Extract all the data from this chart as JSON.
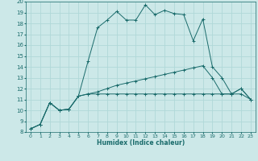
{
  "xlabel": "Humidex (Indice chaleur)",
  "background_color": "#cce8e8",
  "grid_color": "#b0d8d8",
  "line_color": "#1a6b6b",
  "xlim": [
    -0.5,
    23.5
  ],
  "ylim": [
    8,
    20
  ],
  "xticks": [
    0,
    1,
    2,
    3,
    4,
    5,
    6,
    7,
    8,
    9,
    10,
    11,
    12,
    13,
    14,
    15,
    16,
    17,
    18,
    19,
    20,
    21,
    22,
    23
  ],
  "yticks": [
    8,
    9,
    10,
    11,
    12,
    13,
    14,
    15,
    16,
    17,
    18,
    19,
    20
  ],
  "line1_x": [
    0,
    1,
    2,
    3,
    4,
    5,
    6,
    7,
    8,
    9,
    10,
    11,
    12,
    13,
    14,
    15,
    16,
    17,
    18,
    19,
    20,
    21,
    22,
    23
  ],
  "line1_y": [
    8.3,
    8.7,
    10.7,
    10.0,
    10.1,
    11.3,
    14.5,
    17.6,
    18.3,
    19.1,
    18.3,
    18.3,
    19.7,
    18.8,
    19.2,
    18.9,
    18.8,
    16.4,
    18.4,
    14.0,
    13.0,
    11.5,
    12.0,
    11.0
  ],
  "line2_x": [
    0,
    1,
    2,
    3,
    4,
    5,
    6,
    7,
    8,
    9,
    10,
    11,
    12,
    13,
    14,
    15,
    16,
    17,
    18,
    19,
    20,
    21,
    22,
    23
  ],
  "line2_y": [
    8.3,
    8.7,
    10.7,
    10.0,
    10.1,
    11.3,
    11.5,
    11.7,
    12.0,
    12.3,
    12.5,
    12.7,
    12.9,
    13.1,
    13.3,
    13.5,
    13.7,
    13.9,
    14.1,
    13.0,
    11.5,
    11.5,
    12.0,
    11.0
  ],
  "line3_x": [
    0,
    1,
    2,
    3,
    4,
    5,
    6,
    7,
    8,
    9,
    10,
    11,
    12,
    13,
    14,
    15,
    16,
    17,
    18,
    19,
    20,
    21,
    22,
    23
  ],
  "line3_y": [
    8.3,
    8.7,
    10.7,
    10.0,
    10.1,
    11.3,
    11.5,
    11.5,
    11.5,
    11.5,
    11.5,
    11.5,
    11.5,
    11.5,
    11.5,
    11.5,
    11.5,
    11.5,
    11.5,
    11.5,
    11.5,
    11.5,
    11.5,
    11.0
  ]
}
